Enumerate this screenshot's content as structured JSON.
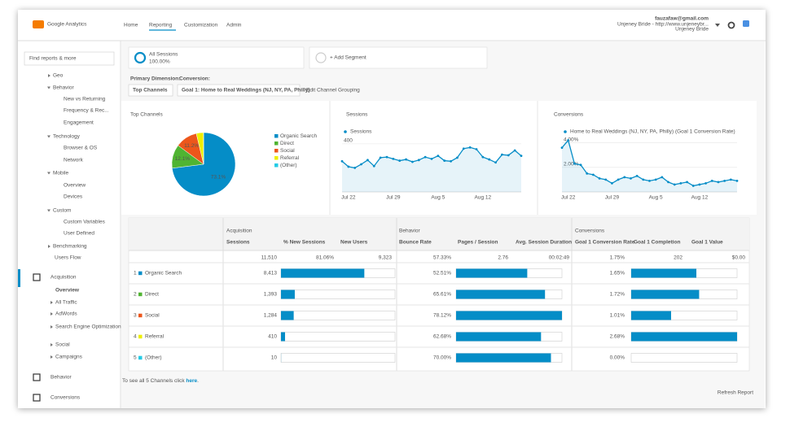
{
  "header": {
    "logo": "Google Analytics",
    "nav": [
      "Home",
      "Reporting",
      "Customization",
      "Admin"
    ],
    "account": {
      "email": "fauzafaw@gmail.com",
      "property": "Unjeney Bride - http://www.unjeneybr...",
      "view": "Unjeney Bride"
    }
  },
  "sidebar": {
    "search": "Find reports & more",
    "items": [
      "Geo",
      "Behavior",
      "New vs Returning",
      "Frequency & Rec...",
      "Engagement",
      "Technology",
      "Browser & OS",
      "Network",
      "Mobile",
      "Overview",
      "Devices",
      "Custom",
      "Custom Variables",
      "User Defined",
      "Benchmarking",
      "Users Flow",
      "Acquisition",
      "Overview",
      "All Traffic",
      "AdWords",
      "Search Engine Optimization",
      "Social",
      "Campaigns",
      "Behavior",
      "Conversions"
    ]
  },
  "segments": {
    "active": {
      "name": "All Sessions",
      "share": "100.00%"
    },
    "add": "+ Add Segment"
  },
  "dimension": {
    "primary_label": "Primary Dimension:",
    "conversion_label": "Conversion:",
    "primary": "Top Channels",
    "conversion": "Goal 1: Home to Real Weddings (NJ, NY, PA, Philly)",
    "edit": "Edit Channel Grouping"
  },
  "pie": {
    "type": "pie",
    "title": "Top Channels",
    "slices": [
      {
        "name": "Organic Search",
        "color": "#058dc7",
        "value": 73.1,
        "label": "73.1%"
      },
      {
        "name": "Direct",
        "color": "#50b432",
        "value": 12.1,
        "label": "12.1%"
      },
      {
        "name": "Social",
        "color": "#ed561b",
        "value": 11.2,
        "label": "11.2%"
      },
      {
        "name": "Referral",
        "color": "#edef00",
        "value": 3.6
      },
      {
        "name": "(Other)",
        "color": "#24cbe5",
        "value": 0.1
      }
    ]
  },
  "sessions_chart": {
    "type": "line",
    "title": "Sessions",
    "legend": "Sessions",
    "color": "#058dc7",
    "categories": [
      null,
      "Jul 22",
      null,
      null,
      null,
      null,
      null,
      null,
      "Jul 29",
      null,
      null,
      null,
      null,
      null,
      null,
      "Aug 5",
      null,
      null,
      null,
      null,
      null,
      null,
      "Aug 12",
      null,
      null,
      null,
      null,
      null,
      null
    ],
    "values": [
      255,
      210,
      200,
      230,
      265,
      215,
      285,
      290,
      275,
      260,
      270,
      250,
      265,
      290,
      275,
      300,
      260,
      255,
      285,
      360,
      370,
      355,
      290,
      270,
      245,
      310,
      305,
      345,
      300
    ],
    "ylim": [
      0,
      460
    ],
    "yticks": [
      400
    ],
    "grid": true
  },
  "conversions_chart": {
    "type": "line",
    "title": "Conversions",
    "legend": "Home to Real Weddings (NJ, NY, PA, Philly) (Goal 1 Conversion Rate)",
    "color": "#058dc7",
    "categories": [
      null,
      "Jul 22",
      null,
      null,
      null,
      null,
      null,
      null,
      "Jul 29",
      null,
      null,
      null,
      null,
      null,
      null,
      "Aug 5",
      null,
      null,
      null,
      null,
      null,
      null,
      "Aug 12",
      null,
      null,
      null,
      null,
      null,
      null
    ],
    "values": [
      3.6,
      4.2,
      2.3,
      2.2,
      1.5,
      1.4,
      1.1,
      1.0,
      0.7,
      1.0,
      1.2,
      1.1,
      1.3,
      1.0,
      0.9,
      1.0,
      1.2,
      0.8,
      0.6,
      0.7,
      0.8,
      0.5,
      0.6,
      0.7,
      0.9,
      0.8,
      0.9,
      1.0,
      0.9
    ],
    "ylim": [
      0,
      4.5
    ],
    "yticks": [
      {
        "value": 4,
        "label": "4.00%"
      },
      {
        "value": 2,
        "label": "2.00%"
      }
    ],
    "grid": true
  },
  "table": {
    "groups": [
      "Acquisition",
      "Behavior",
      "Conversions"
    ],
    "columns": [
      "Sessions",
      "% New Sessions",
      "New Users",
      "Bounce Rate",
      "Pages / Session",
      "Avg. Session Duration",
      "Goal 1 Conversion Rate",
      "Goal 1 Completion",
      "Goal 1 Value"
    ],
    "totals": {
      "sessions": {
        "value": 11510,
        "label": "11,510"
      },
      "others": [
        "81.06%",
        "9,323",
        "57.33%",
        "2.76",
        "00:02:49",
        "1.75%",
        "202",
        "$0.00"
      ]
    },
    "rows": [
      {
        "rank": "1",
        "channel": "Organic Search",
        "color": "#058dc7",
        "sessions": {
          "value": 8413,
          "label": "8,413"
        },
        "bounce": {
          "value": 52.51,
          "label": "52.51%"
        },
        "conversion": {
          "value": 1.65,
          "label": "1.65%"
        }
      },
      {
        "rank": "2",
        "channel": "Direct",
        "color": "#50b432",
        "sessions": {
          "value": 1393,
          "label": "1,393"
        },
        "bounce": {
          "value": 65.61,
          "label": "65.61%"
        },
        "conversion": {
          "value": 1.72,
          "label": "1.72%"
        }
      },
      {
        "rank": "3",
        "channel": "Social",
        "color": "#ed561b",
        "sessions": {
          "value": 1284,
          "label": "1,284"
        },
        "bounce": {
          "value": 78.12,
          "label": "78.12%"
        },
        "conversion": {
          "value": 1.01,
          "label": "1.01%"
        }
      },
      {
        "rank": "4",
        "channel": "Referral",
        "color": "#edef00",
        "sessions": {
          "value": 410,
          "label": "410"
        },
        "bounce": {
          "value": 62.68,
          "label": "62.68%"
        },
        "conversion": {
          "value": 2.68,
          "label": "2.68%"
        }
      },
      {
        "rank": "5",
        "channel": "(Other)",
        "color": "#24cbe5",
        "sessions": {
          "value": 10,
          "label": "10"
        },
        "bounce": {
          "value": 70.0,
          "label": "70.00%"
        },
        "conversion": {
          "value": 0.0,
          "label": "0.00%"
        }
      }
    ]
  },
  "footer": {
    "text": "To see all 5 Channels click ",
    "link": "here",
    "end": ".",
    "refresh": "Refresh Report"
  }
}
